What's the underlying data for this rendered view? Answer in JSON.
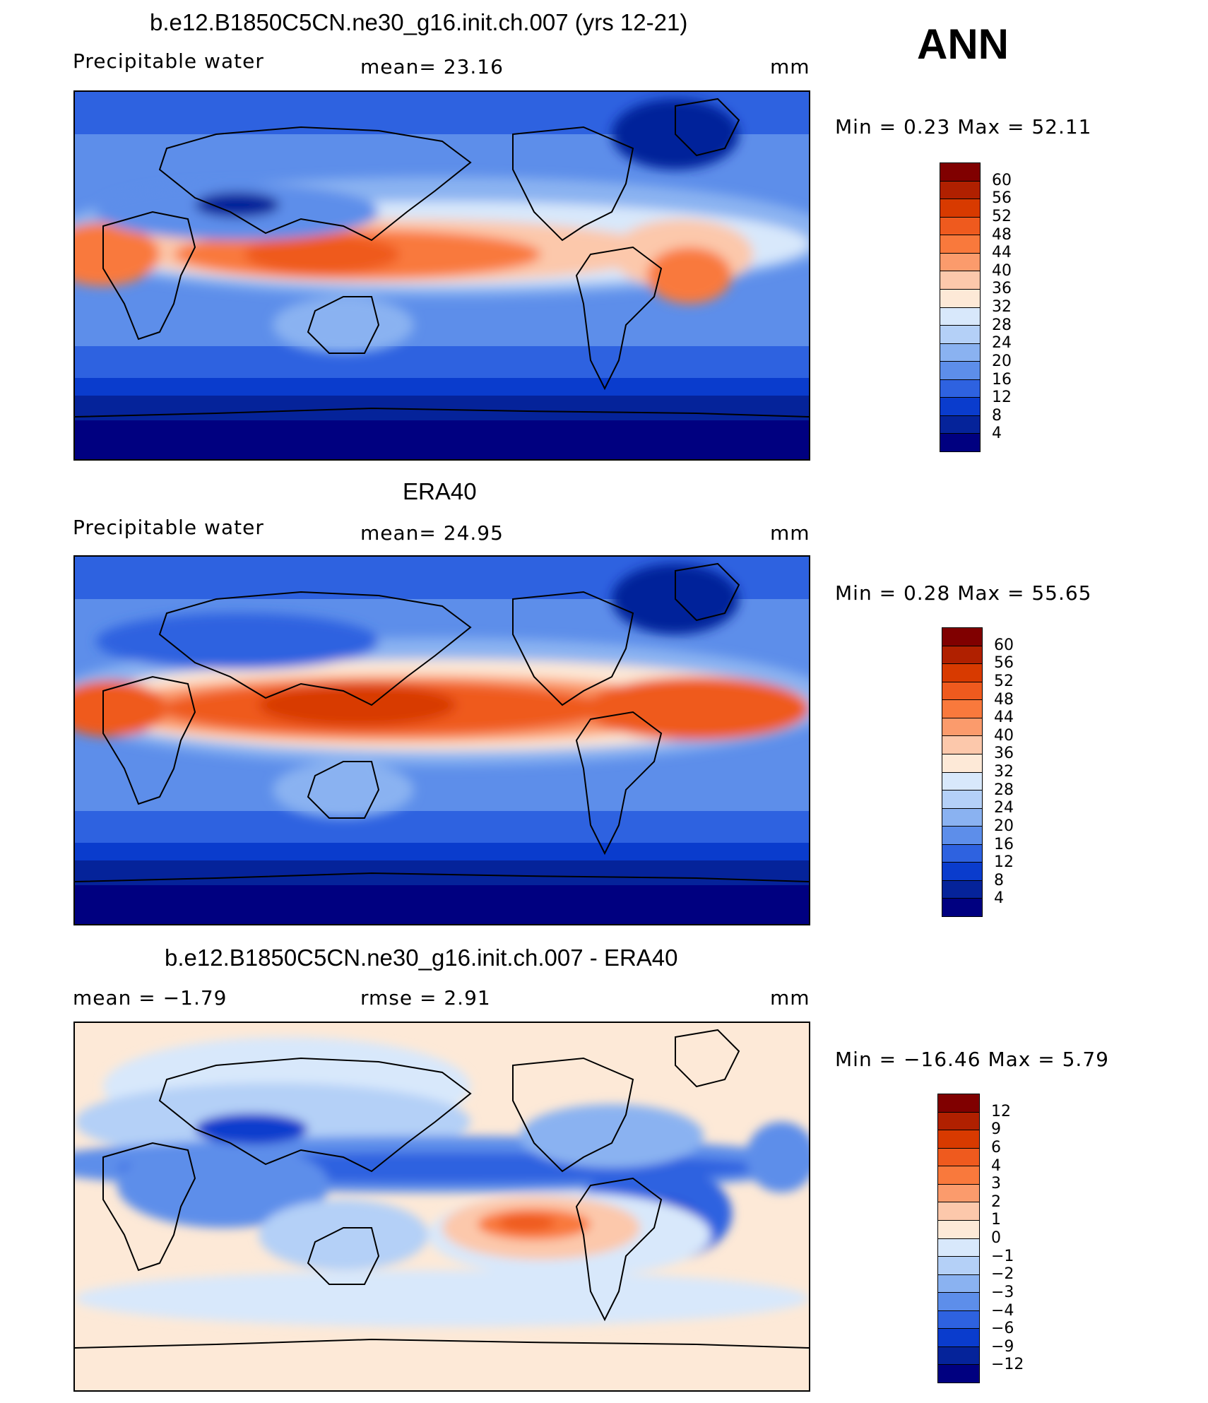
{
  "header_label": "ANN",
  "panels": [
    {
      "title": "b.e12.B1850C5CN.ne30_g16.init.ch.007 (yrs 12-21)",
      "left_label": "Precipitable  water",
      "stat_label": "mean=   23.16",
      "units": "mm",
      "minmax": "Min  =     0.23  Max  =    52.11",
      "levels": [
        "60",
        "56",
        "52",
        "48",
        "44",
        "40",
        "36",
        "32",
        "28",
        "24",
        "20",
        "16",
        "12",
        "8",
        "4"
      ]
    },
    {
      "title": "ERA40",
      "left_label": "Precipitable  water",
      "stat_label": "mean=   24.95",
      "units": "mm",
      "minmax": "Min  =     0.28  Max  =    55.65",
      "levels": [
        "60",
        "56",
        "52",
        "48",
        "44",
        "40",
        "36",
        "32",
        "28",
        "24",
        "20",
        "16",
        "12",
        "8",
        "4"
      ]
    },
    {
      "title": "b.e12.B1850C5CN.ne30_g16.init.ch.007 - ERA40",
      "left_label": "mean  =    −1.79",
      "stat_label": "rmse  =     2.91",
      "units": "mm",
      "minmax": "Min  =  −16.46  Max  =     5.79",
      "levels": [
        "12",
        "9",
        "6",
        "4",
        "3",
        "2",
        "1",
        "0",
        "−1",
        "−2",
        "−3",
        "−4",
        "−6",
        "−9",
        "−12"
      ]
    }
  ],
  "colorbar_colors": [
    "#800000",
    "#b02000",
    "#d83a00",
    "#ef5a1e",
    "#f9793c",
    "#fb9b6c",
    "#fcc8ab",
    "#fde9d7",
    "#d8e8fb",
    "#b4d0f7",
    "#8ab2f1",
    "#5d8eea",
    "#2e62e0",
    "#0a3ccd",
    "#05239a",
    "#000080"
  ],
  "diff_colorbar_colors": [
    "#800000",
    "#b02000",
    "#d83a00",
    "#ef5a1e",
    "#f9793c",
    "#fb9b6c",
    "#fcc8ab",
    "#fde9d7",
    "#d8e8fb",
    "#b4d0f7",
    "#8ab2f1",
    "#5d8eea",
    "#2e62e0",
    "#0a3ccd",
    "#05239a",
    "#000080"
  ]
}
